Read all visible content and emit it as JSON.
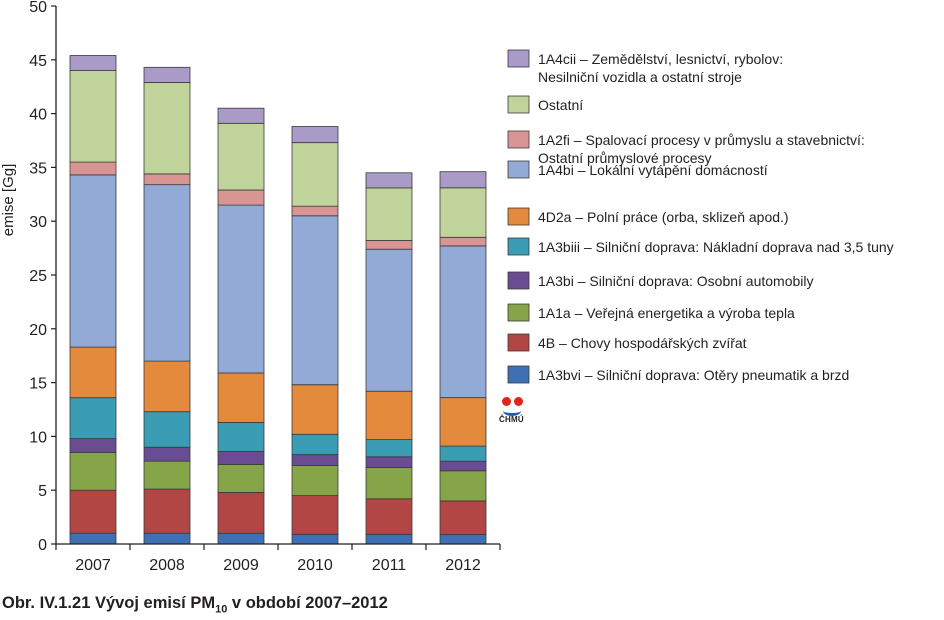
{
  "chart_data": {
    "type": "bar",
    "stacked": true,
    "categories": [
      "2007",
      "2008",
      "2009",
      "2010",
      "2011",
      "2012"
    ],
    "ylabel": "emise [Gg]",
    "xlabel": "",
    "ylim": [
      0,
      50
    ],
    "yticks": [
      0,
      5,
      10,
      15,
      20,
      25,
      30,
      35,
      40,
      45,
      50
    ],
    "grid": false,
    "legend_position": "right",
    "series": [
      {
        "name": "1A3bvi – Silniční doprava: Otěry pneumatik a brzd",
        "legend_lines": [
          "1A3bvi – Silniční doprava: Otěry pneumatik a brzd"
        ],
        "color": "#3f6fb4",
        "values": [
          1.0,
          1.0,
          1.0,
          0.9,
          0.9,
          0.9
        ]
      },
      {
        "name": "4B – Chovy hospodářských zvířat",
        "legend_lines": [
          "4B – Chovy hospodářských zvířat"
        ],
        "color": "#b24645",
        "values": [
          4.0,
          4.1,
          3.8,
          3.6,
          3.3,
          3.1
        ]
      },
      {
        "name": "1A1a – Veřejná energetika a výroba tepla",
        "legend_lines": [
          "1A1a – Veřejná energetika a výroba tepla"
        ],
        "color": "#86a548",
        "values": [
          3.5,
          2.6,
          2.6,
          2.8,
          2.9,
          2.8
        ]
      },
      {
        "name": "1A3bi – Silniční doprava: Osobní automobily",
        "legend_lines": [
          "1A3bi – Silniční doprava: Osobní automobily"
        ],
        "color": "#6a4c93",
        "values": [
          1.3,
          1.3,
          1.2,
          1.0,
          1.0,
          0.9
        ]
      },
      {
        "name": "1A3biii – Silniční doprava: Nákladní doprava nad 3,5 tuny",
        "legend_lines": [
          "1A3biii – Silniční doprava: Nákladní doprava nad 3,5 tuny"
        ],
        "color": "#3b9db3",
        "values": [
          3.8,
          3.3,
          2.7,
          1.9,
          1.6,
          1.4
        ]
      },
      {
        "name": "4D2a – Polní práce (orba, sklizeň apod.)",
        "legend_lines": [
          "4D2a – Polní práce (orba, sklizeň apod.)"
        ],
        "color": "#e48a3d",
        "values": [
          4.7,
          4.7,
          4.6,
          4.6,
          4.5,
          4.5
        ]
      },
      {
        "name": "1A4bi – Lokální vytápění domácností",
        "legend_lines": [
          "1A4bi  – Lokální vytápění domácností"
        ],
        "color": "#93aad6",
        "values": [
          16.0,
          16.4,
          15.6,
          15.7,
          13.2,
          14.1
        ]
      },
      {
        "name": "1A2fi – Spalovací procesy v průmyslu a stavebnictví: Ostatní průmyslové procesy",
        "legend_lines": [
          "1A2fi – Spalovací procesy v průmyslu a stavebnictví:",
          "Ostatní průmyslové procesy"
        ],
        "color": "#d99594",
        "values": [
          1.2,
          1.0,
          1.4,
          0.9,
          0.8,
          0.8
        ]
      },
      {
        "name": "Ostatní",
        "legend_lines": [
          "Ostatní"
        ],
        "color": "#c0d39a",
        "values": [
          8.5,
          8.5,
          6.2,
          5.9,
          4.9,
          4.6
        ]
      },
      {
        "name": "1A4cii – Zemědělství, lesnictví, rybolov: Nesilniční vozidla a ostatní stroje",
        "legend_lines": [
          "1A4cii – Zemědělství, lesnictví, rybolov:",
          "Nesilniční vozidla a ostatní stroje"
        ],
        "color": "#a99ac8",
        "values": [
          1.4,
          1.4,
          1.4,
          1.5,
          1.4,
          1.5
        ]
      }
    ]
  },
  "caption": {
    "prefix": "Obr. IV.1.21  Vývoj emisí PM",
    "subscript": "10",
    "suffix": " v období 2007–2012"
  },
  "logo": {
    "text": "ČHMÚ",
    "colors": {
      "dots": "#e2231a",
      "wave": "#1f5fae"
    }
  }
}
